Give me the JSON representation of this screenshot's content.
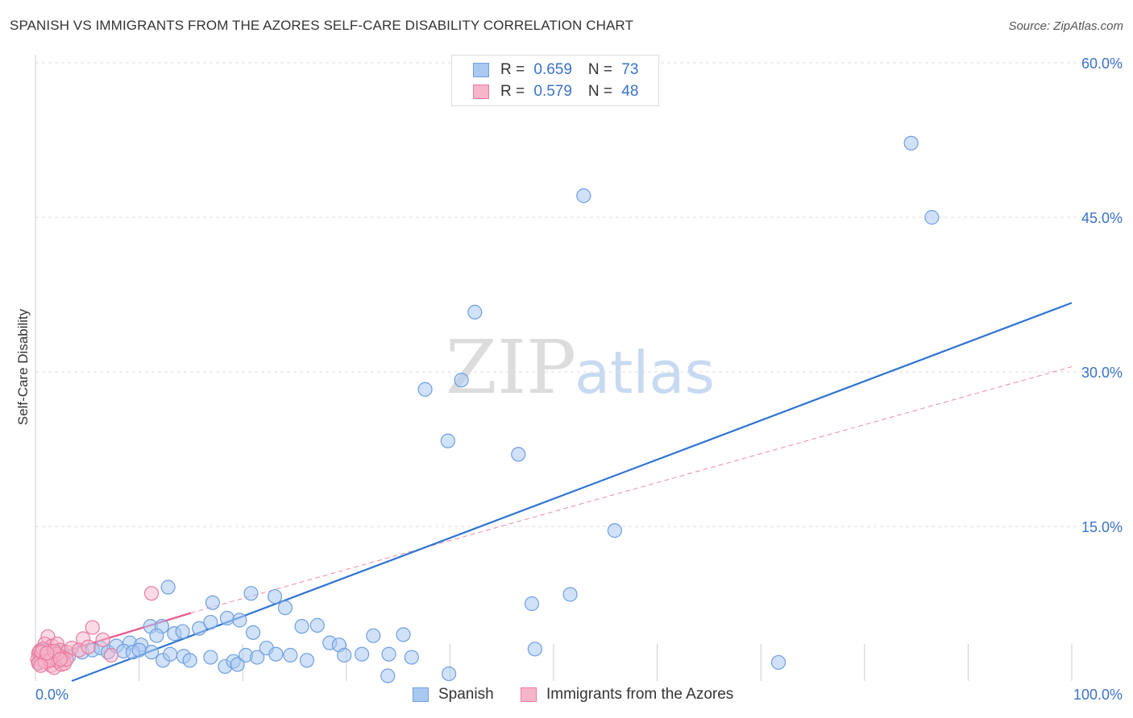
{
  "title": "SPANISH VS IMMIGRANTS FROM THE AZORES SELF-CARE DISABILITY CORRELATION CHART",
  "source": "Source: ZipAtlas.com",
  "watermark": {
    "zip": "ZIP",
    "atlas": "atlas"
  },
  "legend": [
    {
      "r_label": "R = ",
      "r_value": "0.659",
      "n_label": "N = ",
      "n_value": "73"
    },
    {
      "r_label": "R = ",
      "r_value": "0.579",
      "n_label": "N = ",
      "n_value": "48"
    }
  ],
  "colors": {
    "spanish_fill": "#a9c8f2",
    "spanish_stroke": "#6f9fe0",
    "spanish_line": "#2f73d0",
    "azores_fill": "#f6b5c9",
    "azores_stroke": "#ea7aa0",
    "azores_line": "#e8588a",
    "tick_label": "#3a73c8",
    "grid": "#dddddd"
  },
  "chart_data": {
    "type": "scatter",
    "title": "SPANISH VS IMMIGRANTS FROM THE AZORES SELF-CARE DISABILITY CORRELATION CHART",
    "xlabel": "",
    "ylabel": "Self-Care Disability",
    "xlim": [
      0,
      100
    ],
    "ylim": [
      0,
      60
    ],
    "x_tick_labels": [
      "0.0%",
      "100.0%"
    ],
    "y_ticks": [
      15,
      30,
      45,
      60
    ],
    "y_tick_labels": [
      "15.0%",
      "30.0%",
      "45.0%",
      "60.0%"
    ],
    "grid": true,
    "legend_position": "top-center",
    "series": [
      {
        "name": "Spanish",
        "R": 0.659,
        "N": 73,
        "points": [
          [
            84.5,
            52.2
          ],
          [
            86.5,
            45.0
          ],
          [
            52.9,
            47.1
          ],
          [
            42.4,
            35.8
          ],
          [
            37.6,
            28.3
          ],
          [
            41.1,
            29.2
          ],
          [
            39.8,
            23.3
          ],
          [
            46.6,
            22.0
          ],
          [
            55.9,
            14.6
          ],
          [
            12.8,
            9.1
          ],
          [
            20.8,
            8.5
          ],
          [
            23.1,
            8.2
          ],
          [
            17.1,
            7.6
          ],
          [
            24.1,
            7.1
          ],
          [
            47.9,
            7.5
          ],
          [
            51.6,
            8.4
          ],
          [
            11.1,
            5.3
          ],
          [
            12.2,
            5.3
          ],
          [
            15.8,
            5.1
          ],
          [
            16.9,
            5.7
          ],
          [
            18.5,
            6.1
          ],
          [
            19.7,
            5.9
          ],
          [
            21.0,
            4.7
          ],
          [
            25.7,
            5.3
          ],
          [
            27.2,
            5.4
          ],
          [
            11.7,
            4.4
          ],
          [
            13.4,
            4.6
          ],
          [
            14.2,
            4.8
          ],
          [
            9.1,
            3.7
          ],
          [
            10.2,
            3.5
          ],
          [
            11.2,
            2.8
          ],
          [
            12.3,
            2.0
          ],
          [
            13.0,
            2.6
          ],
          [
            14.3,
            2.4
          ],
          [
            14.9,
            2.0
          ],
          [
            16.9,
            2.3
          ],
          [
            18.3,
            1.4
          ],
          [
            19.1,
            1.9
          ],
          [
            19.5,
            1.6
          ],
          [
            20.3,
            2.5
          ],
          [
            21.4,
            2.3
          ],
          [
            22.3,
            3.2
          ],
          [
            23.2,
            2.6
          ],
          [
            24.6,
            2.5
          ],
          [
            26.2,
            2.0
          ],
          [
            28.4,
            3.7
          ],
          [
            29.3,
            3.5
          ],
          [
            29.8,
            2.5
          ],
          [
            31.5,
            2.6
          ],
          [
            32.6,
            4.4
          ],
          [
            34.1,
            2.6
          ],
          [
            35.5,
            4.5
          ],
          [
            36.3,
            2.3
          ],
          [
            34.0,
            0.5
          ],
          [
            39.9,
            0.7
          ],
          [
            48.2,
            3.1
          ],
          [
            71.7,
            1.8
          ],
          [
            4.5,
            2.8
          ],
          [
            5.5,
            3.0
          ],
          [
            6.3,
            3.2
          ],
          [
            7.0,
            2.8
          ],
          [
            7.8,
            3.4
          ],
          [
            8.5,
            2.9
          ],
          [
            9.4,
            2.8
          ],
          [
            10.0,
            3.0
          ],
          [
            3.2,
            2.4
          ],
          [
            2.6,
            2.8
          ],
          [
            1.8,
            2.2
          ],
          [
            1.2,
            2.6
          ],
          [
            0.8,
            2.4
          ],
          [
            0.5,
            3.0
          ],
          [
            0.4,
            2.1
          ],
          [
            0.3,
            1.8
          ]
        ],
        "trend": {
          "x": [
            3.5,
            100.0
          ],
          "y": [
            0.0,
            36.7
          ]
        }
      },
      {
        "name": "Immigrants from the Azores",
        "R": 0.579,
        "N": 48,
        "points": [
          [
            11.2,
            8.5
          ],
          [
            5.5,
            5.2
          ],
          [
            4.6,
            4.1
          ],
          [
            6.5,
            4.0
          ],
          [
            1.2,
            4.3
          ],
          [
            0.9,
            3.6
          ],
          [
            1.6,
            3.4
          ],
          [
            2.1,
            3.6
          ],
          [
            2.4,
            3.0
          ],
          [
            3.0,
            2.8
          ],
          [
            3.5,
            3.2
          ],
          [
            4.2,
            3.0
          ],
          [
            5.1,
            3.3
          ],
          [
            7.3,
            2.5
          ],
          [
            0.3,
            2.7
          ],
          [
            0.5,
            2.4
          ],
          [
            0.6,
            2.0
          ],
          [
            0.8,
            2.6
          ],
          [
            1.0,
            2.2
          ],
          [
            1.1,
            1.8
          ],
          [
            1.3,
            2.9
          ],
          [
            1.4,
            2.5
          ],
          [
            1.5,
            1.5
          ],
          [
            1.7,
            2.1
          ],
          [
            1.8,
            1.3
          ],
          [
            1.9,
            2.7
          ],
          [
            2.0,
            2.2
          ],
          [
            2.2,
            1.9
          ],
          [
            2.3,
            2.4
          ],
          [
            2.5,
            1.6
          ],
          [
            2.6,
            2.3
          ],
          [
            2.7,
            2.0
          ],
          [
            2.8,
            1.7
          ],
          [
            3.0,
            2.1
          ],
          [
            0.2,
            2.1
          ],
          [
            0.4,
            2.9
          ],
          [
            0.7,
            3.1
          ],
          [
            1.2,
            2.4
          ],
          [
            1.6,
            2.3
          ],
          [
            2.1,
            2.6
          ],
          [
            0.3,
            1.7
          ],
          [
            0.6,
            2.8
          ],
          [
            0.9,
            1.9
          ],
          [
            1.4,
            2.0
          ],
          [
            1.8,
            2.9
          ],
          [
            2.4,
            2.1
          ],
          [
            0.5,
            1.5
          ],
          [
            1.1,
            2.7
          ]
        ],
        "trend": {
          "x": [
            0.0,
            15.0
          ],
          "y": [
            2.0,
            6.6
          ]
        },
        "trend_extension": {
          "x": [
            15.0,
            100.0
          ],
          "y": [
            6.6,
            30.5
          ]
        }
      }
    ]
  }
}
